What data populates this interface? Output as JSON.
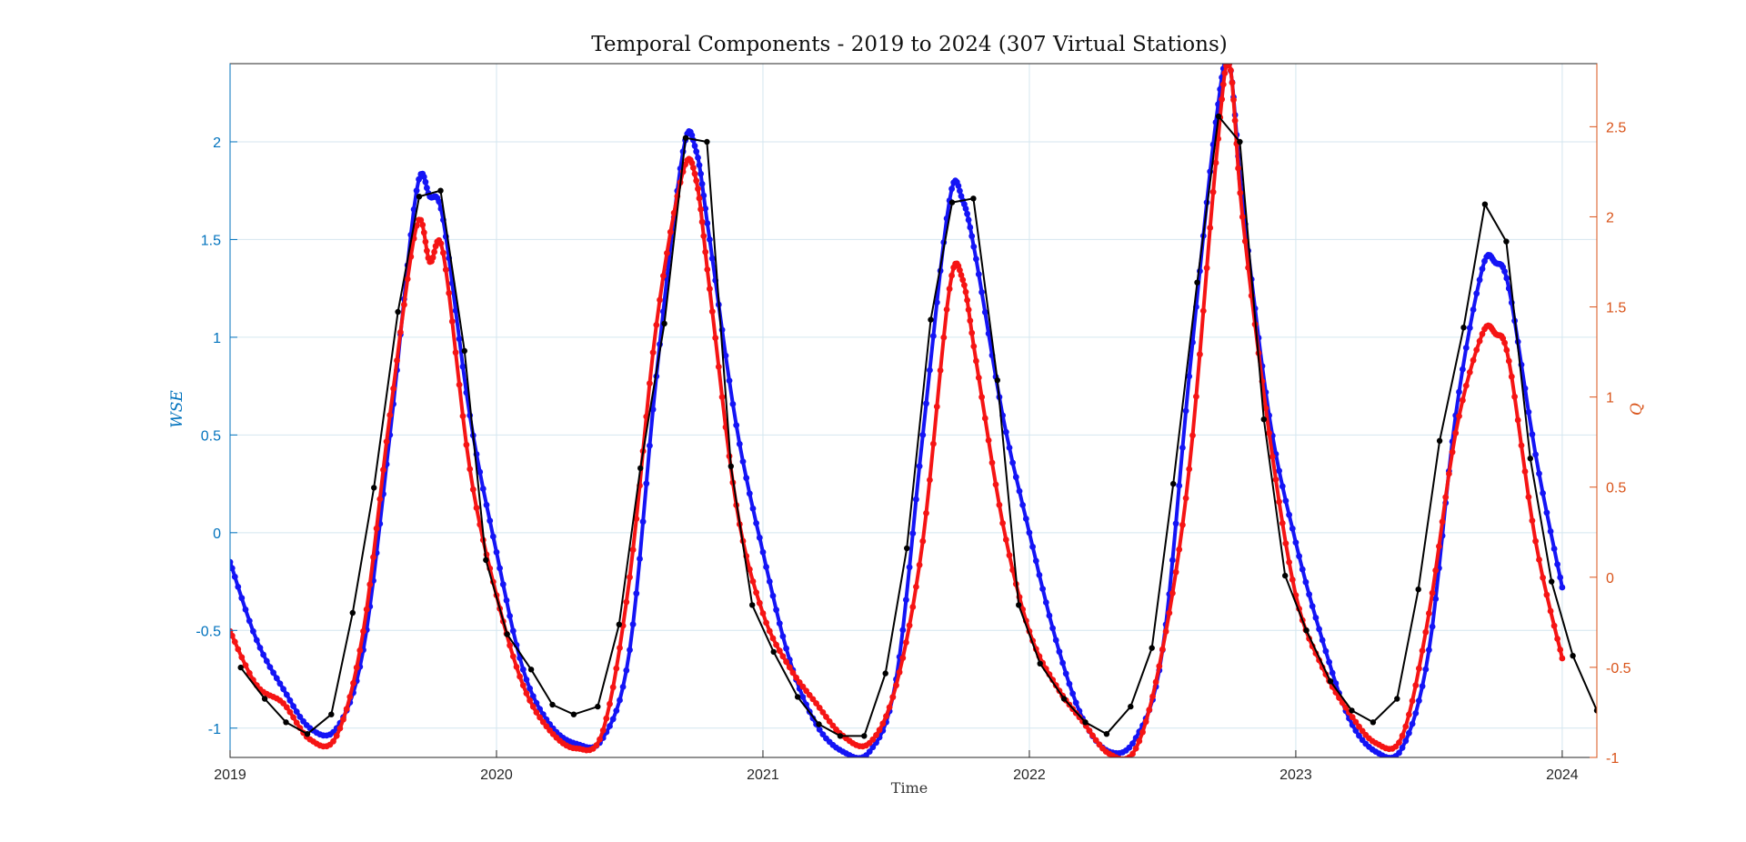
{
  "chart_data": {
    "type": "line",
    "title": "Temporal Components - 2019 to 2024 (307 Virtual Stations)",
    "xlabel": "Time",
    "ylabel_left": "WSE",
    "ylabel_right": "Q",
    "xlim": [
      2019,
      2024.13
    ],
    "ylim_left": [
      -1.15,
      2.4
    ],
    "ylim_right": [
      -1.0,
      2.85
    ],
    "xticks": [
      2019,
      2020,
      2021,
      2022,
      2023,
      2024
    ],
    "xtick_labels": [
      "2019",
      "2020",
      "2021",
      "2022",
      "2023",
      "2024"
    ],
    "yticks_left": [
      -1,
      -0.5,
      0,
      0.5,
      1,
      1.5,
      2
    ],
    "ytick_labels_left": [
      "-1",
      "-0.5",
      "0",
      "0.5",
      "1",
      "1.5",
      "2"
    ],
    "yticks_right": [
      -1,
      -0.5,
      0,
      0.5,
      1,
      1.5,
      2,
      2.5
    ],
    "ytick_labels_right": [
      "-1",
      "-0.5",
      "0",
      "0.5",
      "1",
      "1.5",
      "2",
      "2.5"
    ],
    "grid": true,
    "colors": {
      "left_axis": "#0072BD",
      "right_axis": "#D95319",
      "blue_series": "#1414F5",
      "red_series": "#F51414",
      "black_series": "#000000",
      "grid": "#D4E6EF"
    },
    "series": [
      {
        "axis": "left",
        "color": "blue",
        "style": "dense markers",
        "x": [
          2019.0,
          2019.1,
          2019.2,
          2019.3,
          2019.4,
          2019.5,
          2019.6,
          2019.7,
          2019.75,
          2019.8,
          2019.9,
          2020.0,
          2020.1,
          2020.2,
          2020.3,
          2020.4,
          2020.5,
          2020.6,
          2020.7,
          2020.75,
          2020.8,
          2020.9,
          2021.0,
          2021.1,
          2021.2,
          2021.3,
          2021.4,
          2021.5,
          2021.6,
          2021.7,
          2021.75,
          2021.8,
          2021.9,
          2022.0,
          2022.1,
          2022.2,
          2022.3,
          2022.4,
          2022.5,
          2022.6,
          2022.7,
          2022.75,
          2022.8,
          2022.9,
          2023.0,
          2023.1,
          2023.2,
          2023.3,
          2023.4,
          2023.5,
          2023.6,
          2023.7,
          2023.75,
          2023.8,
          2023.9,
          2024.0
        ],
        "y": [
          -0.15,
          -0.55,
          -0.8,
          -1.0,
          -1.0,
          -0.6,
          0.5,
          1.75,
          1.72,
          1.6,
          0.6,
          -0.1,
          -0.7,
          -0.98,
          -1.08,
          -1.05,
          -0.6,
          0.8,
          1.95,
          1.95,
          1.5,
          0.55,
          -0.1,
          -0.65,
          -0.98,
          -1.12,
          -1.12,
          -0.75,
          0.5,
          1.7,
          1.7,
          1.4,
          0.6,
          0.0,
          -0.55,
          -0.95,
          -1.12,
          -1.05,
          -0.6,
          0.8,
          2.1,
          2.4,
          1.7,
          0.6,
          -0.05,
          -0.55,
          -0.95,
          -1.12,
          -1.1,
          -0.6,
          0.6,
          1.35,
          1.38,
          1.25,
          0.4,
          -0.28
        ]
      },
      {
        "axis": "right",
        "color": "red",
        "style": "dense markers",
        "x": [
          2019.0,
          2019.1,
          2019.2,
          2019.3,
          2019.4,
          2019.5,
          2019.6,
          2019.7,
          2019.75,
          2019.8,
          2019.9,
          2020.0,
          2020.1,
          2020.2,
          2020.3,
          2020.4,
          2020.5,
          2020.6,
          2020.7,
          2020.75,
          2020.8,
          2020.9,
          2021.0,
          2021.1,
          2021.2,
          2021.3,
          2021.4,
          2021.5,
          2021.6,
          2021.7,
          2021.75,
          2021.8,
          2021.9,
          2022.0,
          2022.1,
          2022.2,
          2022.3,
          2022.4,
          2022.5,
          2022.6,
          2022.7,
          2022.75,
          2022.8,
          2022.9,
          2023.0,
          2023.1,
          2023.2,
          2023.3,
          2023.4,
          2023.5,
          2023.6,
          2023.7,
          2023.75,
          2023.8,
          2023.9,
          2024.0
        ],
        "y": [
          -0.3,
          -0.6,
          -0.7,
          -0.9,
          -0.88,
          -0.3,
          0.9,
          1.95,
          1.75,
          1.8,
          0.6,
          -0.1,
          -0.6,
          -0.85,
          -0.95,
          -0.85,
          0.0,
          1.4,
          2.25,
          2.2,
          1.6,
          0.4,
          -0.2,
          -0.5,
          -0.7,
          -0.88,
          -0.92,
          -0.6,
          0.2,
          1.6,
          1.65,
          1.2,
          0.3,
          -0.3,
          -0.6,
          -0.8,
          -0.98,
          -0.95,
          -0.4,
          0.6,
          2.3,
          2.85,
          2.0,
          0.8,
          -0.1,
          -0.5,
          -0.75,
          -0.92,
          -0.88,
          -0.2,
          0.8,
          1.35,
          1.35,
          1.2,
          0.2,
          -0.45
        ]
      },
      {
        "axis": "left",
        "color": "black",
        "style": "line with markers",
        "x": [
          2019.04,
          2019.13,
          2019.21,
          2019.29,
          2019.38,
          2019.46,
          2019.54,
          2019.63,
          2019.71,
          2019.79,
          2019.88,
          2019.96,
          2020.04,
          2020.13,
          2020.21,
          2020.29,
          2020.38,
          2020.46,
          2020.54,
          2020.63,
          2020.71,
          2020.79,
          2020.88,
          2020.96,
          2021.04,
          2021.13,
          2021.21,
          2021.29,
          2021.38,
          2021.46,
          2021.54,
          2021.63,
          2021.71,
          2021.79,
          2021.88,
          2021.96,
          2022.04,
          2022.13,
          2022.21,
          2022.29,
          2022.38,
          2022.46,
          2022.54,
          2022.63,
          2022.71,
          2022.79,
          2022.88,
          2022.96,
          2023.04,
          2023.13,
          2023.21,
          2023.29,
          2023.38,
          2023.46,
          2023.54,
          2023.63,
          2023.71,
          2023.79,
          2023.88,
          2023.96,
          2024.04,
          2024.13
        ],
        "y": [
          -0.69,
          -0.85,
          -0.97,
          -1.03,
          -0.93,
          -0.41,
          0.23,
          1.13,
          1.72,
          1.75,
          0.93,
          -0.14,
          -0.52,
          -0.7,
          -0.88,
          -0.93,
          -0.89,
          -0.47,
          0.33,
          1.07,
          2.02,
          2.0,
          0.34,
          -0.37,
          -0.61,
          -0.84,
          -0.98,
          -1.04,
          -1.04,
          -0.72,
          -0.08,
          1.09,
          1.69,
          1.71,
          0.78,
          -0.37,
          -0.67,
          -0.85,
          -0.97,
          -1.03,
          -0.89,
          -0.59,
          0.25,
          1.28,
          2.13,
          2.0,
          0.58,
          -0.22,
          -0.5,
          -0.76,
          -0.91,
          -0.97,
          -0.85,
          -0.29,
          0.47,
          1.05,
          1.68,
          1.49,
          0.38,
          -0.25,
          -0.63,
          -0.91
        ]
      }
    ]
  }
}
